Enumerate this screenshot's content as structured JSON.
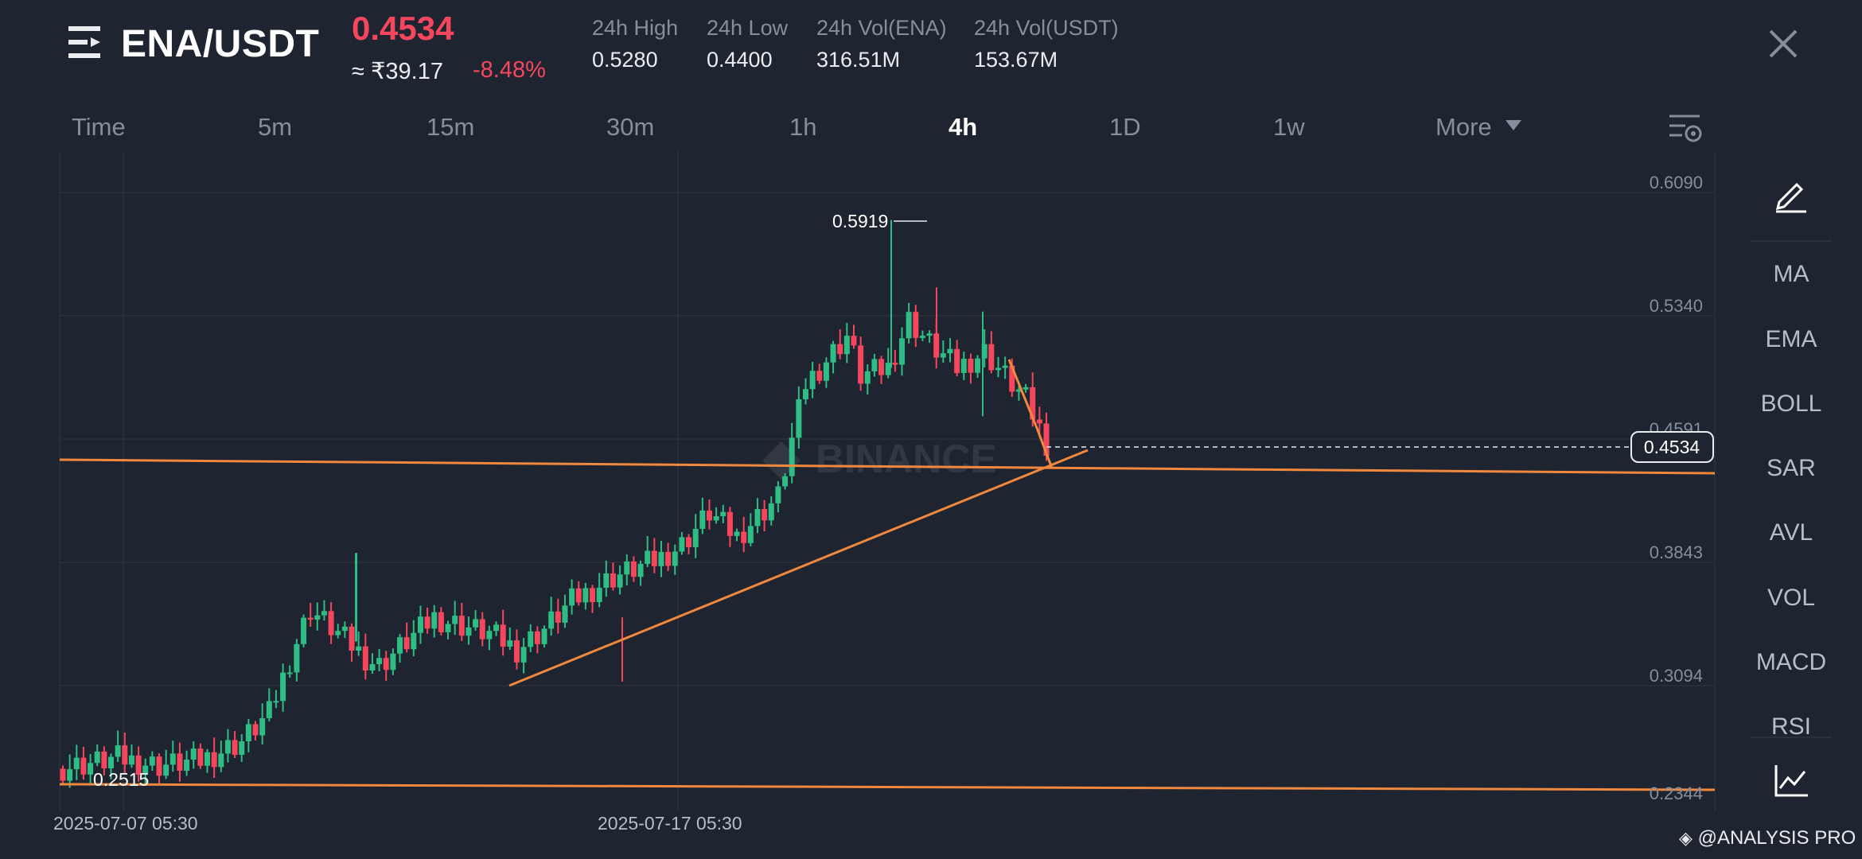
{
  "header": {
    "pair": "ENA/USDT",
    "last_price": "0.4534",
    "fiat_price": "≈ ₹39.17",
    "change_pct": "-8.48%",
    "stats": [
      {
        "label": "24h High",
        "value": "0.5280"
      },
      {
        "label": "24h Low",
        "value": "0.4400"
      },
      {
        "label": "24h Vol(ENA)",
        "value": "316.51M"
      },
      {
        "label": "24h Vol(USDT)",
        "value": "153.67M"
      }
    ]
  },
  "tabs": {
    "time": "Time",
    "m5": "5m",
    "m15": "15m",
    "m30": "30m",
    "h1": "1h",
    "h4": "4h",
    "d1": "1D",
    "w1": "1w",
    "more": "More"
  },
  "chart": {
    "watermark": "BINANCE",
    "high_marker": "0.5919",
    "low_marker": "0.2515",
    "current_price_tag": "0.4534",
    "price_axis": [
      "0.6090",
      "0.5340",
      "0.4591",
      "0.3843",
      "0.3094",
      "0.2344"
    ],
    "time_axis": [
      "2025-07-07 05:30",
      "2025-07-17 05:30"
    ]
  },
  "sidebar": {
    "indicators": [
      "MA",
      "EMA",
      "BOLL",
      "SAR",
      "AVL",
      "VOL",
      "MACD",
      "RSI"
    ]
  },
  "footer": {
    "brand": "@ANALYSIS PRO"
  },
  "colors": {
    "up": "#2ebd85",
    "down": "#f6465d",
    "trendline": "#f0883e",
    "background": "#1f2530"
  }
}
